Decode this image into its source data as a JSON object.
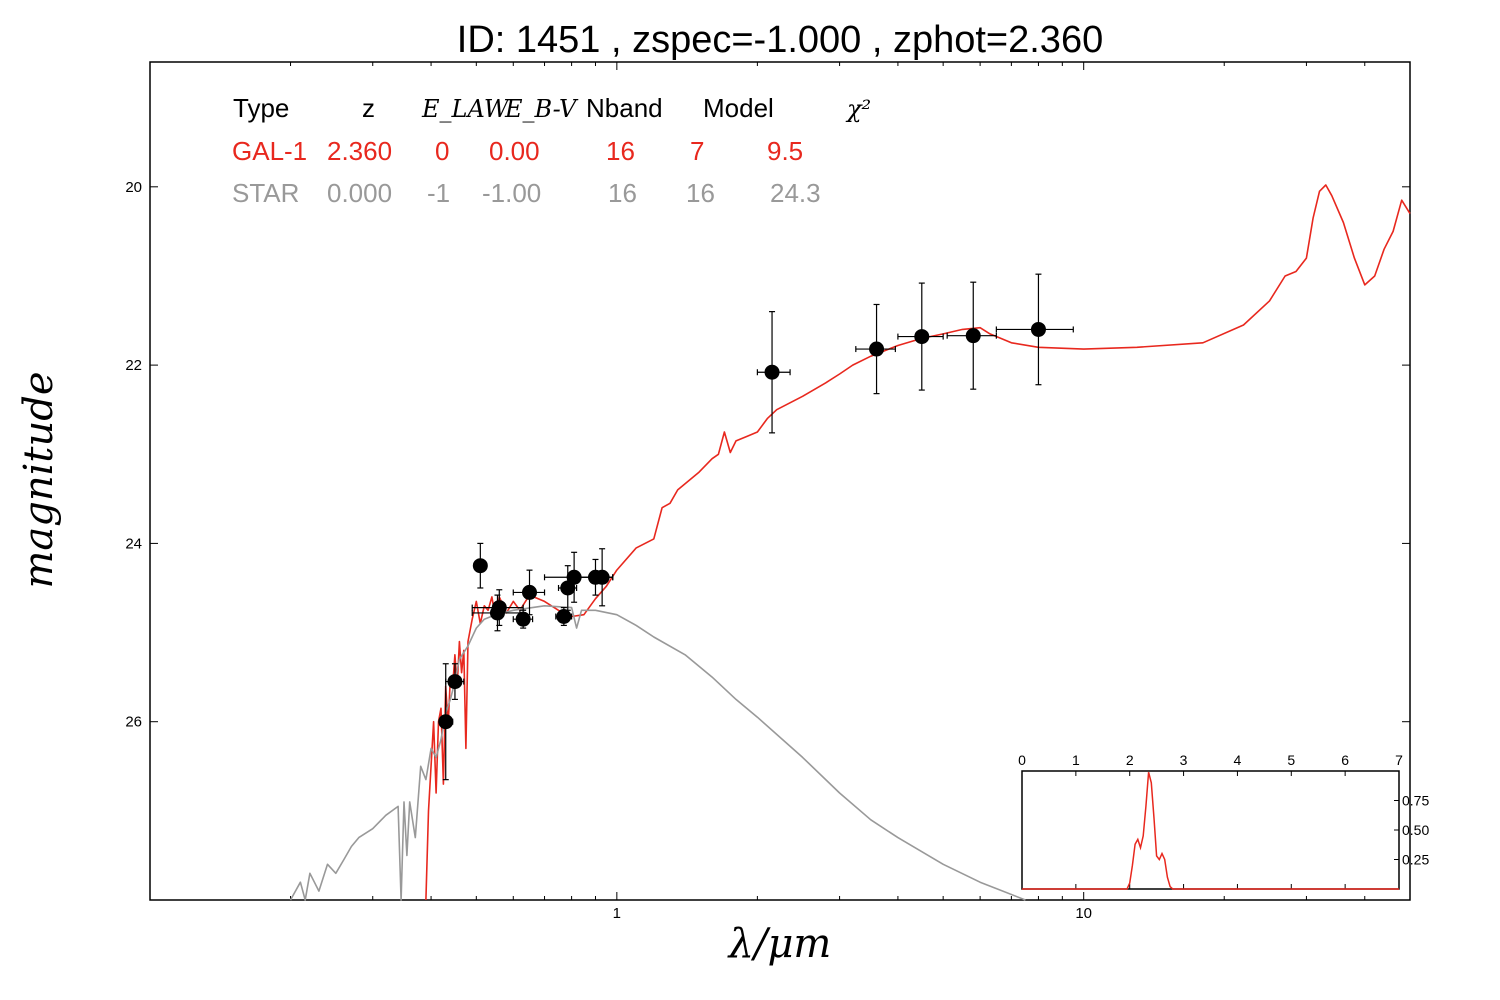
{
  "chart_data": {
    "type": "scatter",
    "title": "ID:  1451  , zspec=-1.000 , zphot=2.360",
    "xlabel": "λ/μm",
    "ylabel": "magnitude",
    "x_scale": "log",
    "x_range": [
      0.1,
      50
    ],
    "y_range": [
      28.0,
      18.6
    ],
    "y_inverted": true,
    "x_ticks": [
      "1",
      "10"
    ],
    "y_ticks": [
      "20",
      "22",
      "24",
      "26"
    ],
    "table": {
      "headers": [
        "Type",
        "z",
        "E_LAW",
        "E_B-V",
        "Nband",
        "Model",
        "χ²"
      ],
      "rows": [
        {
          "name": "gal",
          "color": "#e8281e",
          "cells": [
            "GAL-1",
            "2.360",
            "0",
            "0.00",
            "16",
            "7",
            "9.5"
          ]
        },
        {
          "name": "star",
          "color": "#999999",
          "cells": [
            "STAR",
            "0.000",
            "-1",
            "-1.00",
            "16",
            "16",
            "24.3"
          ]
        }
      ]
    },
    "observations": [
      {
        "x": 0.43,
        "y": 26.0,
        "xerr": [
          0.42,
          0.445
        ],
        "yerr": 0.65
      },
      {
        "x": 0.45,
        "y": 25.55,
        "xerr": [
          0.43,
          0.47
        ],
        "yerr": 0.2
      },
      {
        "x": 0.51,
        "y": 24.25,
        "xerr": [
          0.495,
          0.525
        ],
        "yerr": 0.25
      },
      {
        "x": 0.555,
        "y": 24.78,
        "xerr": [
          0.49,
          0.62
        ],
        "yerr": 0.2
      },
      {
        "x": 0.56,
        "y": 24.72,
        "xerr": [
          0.49,
          0.63
        ],
        "yerr": 0.2
      },
      {
        "x": 0.63,
        "y": 24.85,
        "xerr": [
          0.6,
          0.66
        ],
        "yerr": 0.1
      },
      {
        "x": 0.65,
        "y": 24.55,
        "xerr": [
          0.6,
          0.7
        ],
        "yerr": 0.25
      },
      {
        "x": 0.77,
        "y": 24.82,
        "xerr": [
          0.74,
          0.8
        ],
        "yerr": 0.1
      },
      {
        "x": 0.785,
        "y": 24.5,
        "xerr": [
          0.75,
          0.82
        ],
        "yerr": 0.25
      },
      {
        "x": 0.81,
        "y": 24.38,
        "xerr": [
          0.7,
          0.93
        ],
        "yerr": 0.28
      },
      {
        "x": 0.9,
        "y": 24.38,
        "xerr": [
          0.82,
          0.98
        ],
        "yerr": 0.2
      },
      {
        "x": 0.93,
        "y": 24.38,
        "xerr": [
          0.88,
          0.98
        ],
        "yerr": 0.32
      },
      {
        "x": 2.15,
        "y": 22.08,
        "xerr": [
          2.0,
          2.35
        ],
        "yerr": 0.68
      },
      {
        "x": 3.6,
        "y": 21.82,
        "xerr": [
          3.25,
          3.95
        ],
        "yerr": 0.5
      },
      {
        "x": 4.5,
        "y": 21.68,
        "xerr": [
          4.0,
          5.0
        ],
        "yerr": 0.6
      },
      {
        "x": 5.8,
        "y": 21.67,
        "xerr": [
          5.1,
          6.5
        ],
        "yerr": 0.6
      },
      {
        "x": 8.0,
        "y": 21.6,
        "xerr": [
          6.5,
          9.5
        ],
        "yerr": 0.62
      }
    ],
    "series": [
      {
        "name": "GAL-1",
        "color": "#e8281e",
        "points": [
          [
            0.39,
            28.0
          ],
          [
            0.395,
            27.0
          ],
          [
            0.405,
            26.0
          ],
          [
            0.41,
            26.8
          ],
          [
            0.415,
            26.0
          ],
          [
            0.42,
            25.85
          ],
          [
            0.425,
            26.7
          ],
          [
            0.43,
            25.6
          ],
          [
            0.435,
            26.05
          ],
          [
            0.44,
            25.5
          ],
          [
            0.445,
            25.6
          ],
          [
            0.45,
            25.25
          ],
          [
            0.455,
            25.6
          ],
          [
            0.46,
            25.1
          ],
          [
            0.465,
            25.45
          ],
          [
            0.47,
            25.2
          ],
          [
            0.475,
            26.3
          ],
          [
            0.48,
            25.1
          ],
          [
            0.49,
            24.85
          ],
          [
            0.5,
            24.65
          ],
          [
            0.51,
            24.9
          ],
          [
            0.52,
            24.7
          ],
          [
            0.53,
            24.75
          ],
          [
            0.54,
            24.6
          ],
          [
            0.55,
            24.85
          ],
          [
            0.56,
            24.6
          ],
          [
            0.58,
            24.78
          ],
          [
            0.6,
            24.65
          ],
          [
            0.62,
            24.75
          ],
          [
            0.65,
            24.58
          ],
          [
            0.7,
            24.65
          ],
          [
            0.75,
            24.75
          ],
          [
            0.8,
            24.82
          ],
          [
            0.85,
            24.8
          ],
          [
            0.9,
            24.62
          ],
          [
            0.95,
            24.48
          ],
          [
            1.0,
            24.3
          ],
          [
            1.1,
            24.05
          ],
          [
            1.2,
            23.95
          ],
          [
            1.25,
            23.6
          ],
          [
            1.3,
            23.55
          ],
          [
            1.35,
            23.4
          ],
          [
            1.5,
            23.2
          ],
          [
            1.6,
            23.05
          ],
          [
            1.65,
            23.0
          ],
          [
            1.7,
            22.75
          ],
          [
            1.75,
            22.98
          ],
          [
            1.8,
            22.85
          ],
          [
            1.9,
            22.8
          ],
          [
            2.0,
            22.75
          ],
          [
            2.1,
            22.6
          ],
          [
            2.2,
            22.5
          ],
          [
            2.5,
            22.35
          ],
          [
            2.8,
            22.2
          ],
          [
            3.0,
            22.1
          ],
          [
            3.2,
            22.0
          ],
          [
            3.5,
            21.9
          ],
          [
            4.0,
            21.78
          ],
          [
            4.5,
            21.7
          ],
          [
            5.0,
            21.65
          ],
          [
            5.5,
            21.6
          ],
          [
            6.0,
            21.58
          ],
          [
            6.3,
            21.65
          ],
          [
            7.0,
            21.75
          ],
          [
            8.0,
            21.8
          ],
          [
            10.0,
            21.82
          ],
          [
            13.0,
            21.8
          ],
          [
            18.0,
            21.75
          ],
          [
            22.0,
            21.55
          ],
          [
            25.0,
            21.28
          ],
          [
            27.0,
            21.0
          ],
          [
            28.5,
            20.95
          ],
          [
            30.0,
            20.8
          ],
          [
            31.0,
            20.35
          ],
          [
            32.0,
            20.05
          ],
          [
            33.0,
            19.98
          ],
          [
            34.0,
            20.1
          ],
          [
            36.0,
            20.4
          ],
          [
            38.0,
            20.8
          ],
          [
            40.0,
            21.1
          ],
          [
            42.0,
            21.0
          ],
          [
            44.0,
            20.7
          ],
          [
            46.0,
            20.5
          ],
          [
            48.0,
            20.15
          ],
          [
            50.0,
            20.3
          ]
        ]
      },
      {
        "name": "STAR",
        "color": "#999999",
        "points": [
          [
            0.2,
            28.0
          ],
          [
            0.21,
            27.8
          ],
          [
            0.215,
            28.0
          ],
          [
            0.22,
            27.7
          ],
          [
            0.23,
            27.9
          ],
          [
            0.24,
            27.6
          ],
          [
            0.25,
            27.7
          ],
          [
            0.26,
            27.55
          ],
          [
            0.27,
            27.4
          ],
          [
            0.28,
            27.3
          ],
          [
            0.3,
            27.2
          ],
          [
            0.32,
            27.05
          ],
          [
            0.34,
            26.95
          ],
          [
            0.345,
            28.0
          ],
          [
            0.35,
            26.9
          ],
          [
            0.355,
            27.5
          ],
          [
            0.36,
            26.9
          ],
          [
            0.37,
            27.3
          ],
          [
            0.38,
            26.5
          ],
          [
            0.39,
            26.65
          ],
          [
            0.4,
            26.3
          ],
          [
            0.41,
            26.4
          ],
          [
            0.42,
            26.2
          ],
          [
            0.43,
            25.9
          ],
          [
            0.44,
            25.75
          ],
          [
            0.45,
            25.55
          ],
          [
            0.46,
            25.3
          ],
          [
            0.48,
            25.15
          ],
          [
            0.5,
            24.95
          ],
          [
            0.52,
            24.85
          ],
          [
            0.55,
            24.8
          ],
          [
            0.6,
            24.75
          ],
          [
            0.7,
            24.7
          ],
          [
            0.8,
            24.72
          ],
          [
            0.82,
            24.95
          ],
          [
            0.84,
            24.75
          ],
          [
            0.9,
            24.75
          ],
          [
            1.0,
            24.8
          ],
          [
            1.1,
            24.92
          ],
          [
            1.2,
            25.05
          ],
          [
            1.4,
            25.25
          ],
          [
            1.6,
            25.5
          ],
          [
            1.8,
            25.75
          ],
          [
            2.0,
            25.95
          ],
          [
            2.5,
            26.4
          ],
          [
            3.0,
            26.8
          ],
          [
            3.5,
            27.1
          ],
          [
            4.0,
            27.3
          ],
          [
            5.0,
            27.6
          ],
          [
            6.0,
            27.8
          ],
          [
            7.5,
            28.0
          ]
        ]
      }
    ],
    "inset": {
      "x_range": [
        0,
        7
      ],
      "y_range": [
        0,
        1.0
      ],
      "x_ticks": [
        "0",
        "1",
        "2",
        "3",
        "4",
        "5",
        "6",
        "7"
      ],
      "y_ticks": [
        "0.25",
        "0.50",
        "0.75"
      ],
      "color": "#e8281e",
      "points": [
        [
          0,
          0
        ],
        [
          1.95,
          0
        ],
        [
          2.0,
          0.05
        ],
        [
          2.05,
          0.2
        ],
        [
          2.1,
          0.38
        ],
        [
          2.15,
          0.42
        ],
        [
          2.2,
          0.35
        ],
        [
          2.25,
          0.45
        ],
        [
          2.3,
          0.7
        ],
        [
          2.35,
          0.99
        ],
        [
          2.4,
          0.9
        ],
        [
          2.45,
          0.6
        ],
        [
          2.5,
          0.28
        ],
        [
          2.55,
          0.25
        ],
        [
          2.6,
          0.3
        ],
        [
          2.65,
          0.25
        ],
        [
          2.7,
          0.1
        ],
        [
          2.75,
          0.02
        ],
        [
          2.8,
          0
        ],
        [
          7,
          0
        ]
      ]
    }
  }
}
